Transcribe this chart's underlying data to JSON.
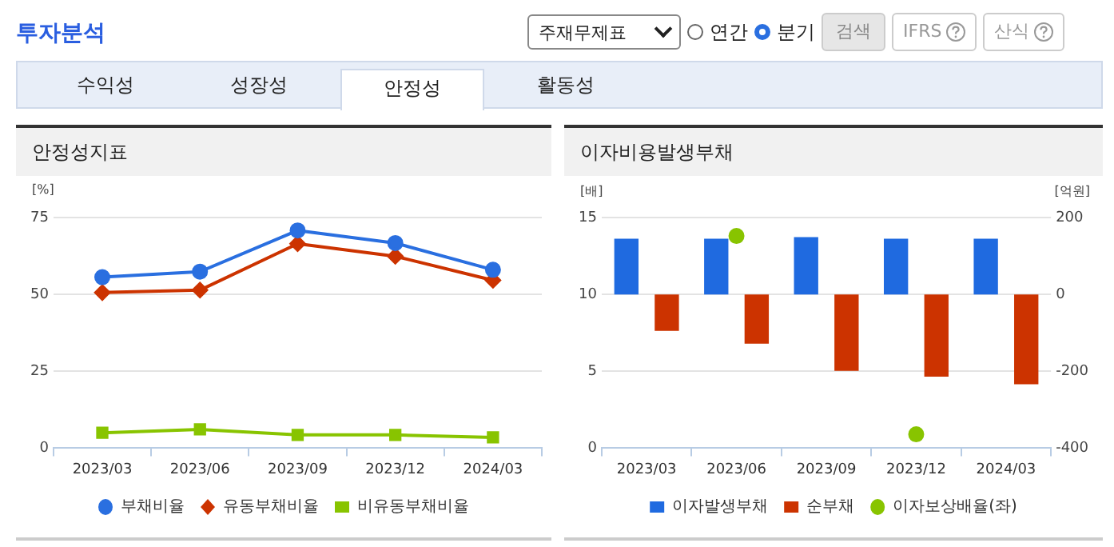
{
  "chart_data": [
    {
      "type": "other",
      "title": "투자분석",
      "annotations": [
        "주재무제표",
        "연간",
        "분기",
        "검색",
        "IFRS",
        "산식",
        "수익성",
        "성장성",
        "안정성",
        "활동성"
      ]
    },
    {
      "type": "line",
      "title": "안정성지표",
      "ylabel": "[%]",
      "categories": [
        "2023/03",
        "2023/06",
        "2023/09",
        "2023/12",
        "2024/03"
      ],
      "ylim": [
        0,
        75
      ],
      "yticks": [
        0,
        25,
        50,
        75
      ],
      "grid": "y",
      "legend": "bottom",
      "series": [
        {
          "name": "부채비율",
          "color": "#2a6fe0",
          "marker": "circle",
          "values": [
            55.6,
            57.4,
            70.8,
            66.7,
            58.0
          ]
        },
        {
          "name": "유동부채비율",
          "color": "#cc3300",
          "marker": "diamond",
          "values": [
            50.6,
            51.4,
            66.5,
            62.4,
            54.6
          ]
        },
        {
          "name": "비유동부채비율",
          "color": "#88c400",
          "marker": "square",
          "values": [
            5.0,
            6.1,
            4.3,
            4.3,
            3.5
          ]
        }
      ]
    },
    {
      "type": "bar",
      "title": "이자비용발생부채",
      "ylabel": "[배]",
      "y2label": "[억원]",
      "categories": [
        "2023/03",
        "2023/06",
        "2023/09",
        "2023/12",
        "2024/03"
      ],
      "ylim": [
        0,
        15
      ],
      "yticks": [
        0,
        5,
        10,
        15
      ],
      "y2lim": [
        -400,
        200
      ],
      "y2ticks": [
        -400,
        -200,
        0,
        200
      ],
      "grid": "y",
      "legend": "bottom",
      "series": [
        {
          "name": "이자발생부채",
          "color": "#1f6ae0",
          "axis": "y2",
          "values": [
            145,
            145,
            149,
            145,
            145
          ]
        },
        {
          "name": "순부채",
          "color": "#cc3300",
          "axis": "y2",
          "values": [
            -95,
            -128,
            -199,
            -214,
            -234
          ]
        },
        {
          "name": "이자보상배율(좌)",
          "color": "#88c400",
          "type": "scatter",
          "marker": "circle",
          "values": [
            null,
            13.8,
            null,
            0.9,
            null
          ]
        }
      ]
    }
  ]
}
